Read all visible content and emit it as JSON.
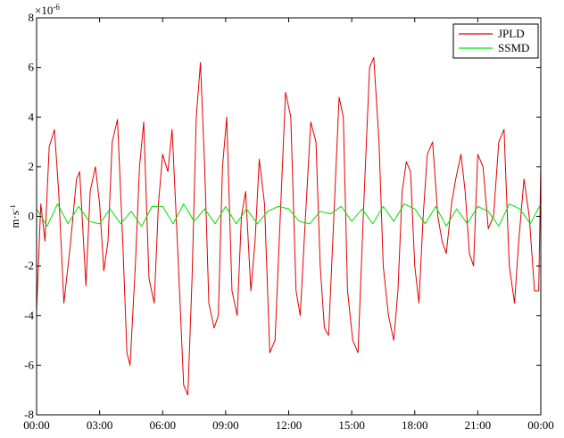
{
  "chart_data": {
    "type": "line",
    "title": "",
    "xlabel": "",
    "ylabel": "m·s",
    "ylabel_superscript": "-1",
    "y_scale_base": "×10",
    "y_scale_exponent": "-6",
    "xlim": [
      0,
      24
    ],
    "ylim": [
      -8,
      8
    ],
    "x_ticks": [
      0,
      3,
      6,
      9,
      12,
      15,
      18,
      21,
      24
    ],
    "x_tick_labels": [
      "00:00",
      "03:00",
      "06:00",
      "09:00",
      "12:00",
      "15:00",
      "18:00",
      "21:00",
      "00:00"
    ],
    "y_ticks": [
      -8,
      -6,
      -4,
      -2,
      0,
      2,
      4,
      6,
      8
    ],
    "y_tick_labels": [
      "-8",
      "-6",
      "-4",
      "-2",
      "0",
      "2",
      "4",
      "6",
      "8"
    ],
    "grid": false,
    "legend_position": "top-right",
    "series": [
      {
        "name": "JPLD",
        "color": "#e00000",
        "x": [
          0.0,
          0.2,
          0.4,
          0.6,
          0.85,
          1.05,
          1.3,
          1.6,
          1.9,
          2.05,
          2.35,
          2.55,
          2.8,
          3.0,
          3.2,
          3.4,
          3.6,
          3.85,
          4.1,
          4.3,
          4.45,
          4.7,
          4.9,
          5.1,
          5.35,
          5.6,
          5.8,
          6.0,
          6.25,
          6.45,
          6.7,
          7.0,
          7.2,
          7.4,
          7.6,
          7.8,
          8.0,
          8.2,
          8.45,
          8.65,
          8.85,
          9.05,
          9.3,
          9.55,
          9.75,
          9.95,
          10.2,
          10.4,
          10.6,
          10.85,
          11.1,
          11.35,
          11.6,
          11.85,
          12.1,
          12.35,
          12.55,
          12.8,
          13.05,
          13.3,
          13.5,
          13.7,
          13.9,
          14.15,
          14.4,
          14.6,
          14.8,
          15.05,
          15.3,
          15.55,
          15.85,
          16.05,
          16.3,
          16.5,
          16.75,
          17.0,
          17.2,
          17.4,
          17.6,
          17.8,
          18.0,
          18.2,
          18.4,
          18.6,
          18.85,
          19.1,
          19.3,
          19.5,
          19.75,
          19.95,
          20.2,
          20.4,
          20.6,
          20.8,
          21.0,
          21.25,
          21.5,
          21.75,
          22.0,
          22.25,
          22.5,
          22.75,
          22.95,
          23.2,
          23.45,
          23.7,
          23.9,
          24.0
        ],
        "y": [
          -3.8,
          0.5,
          -1.0,
          2.8,
          3.5,
          1.0,
          -3.5,
          -1.2,
          1.5,
          1.8,
          -2.8,
          1.0,
          2.0,
          0.5,
          -2.2,
          -1.0,
          3.0,
          3.9,
          -1.0,
          -5.5,
          -6.0,
          -2.0,
          2.0,
          3.8,
          -2.5,
          -3.5,
          0.5,
          2.5,
          1.8,
          3.5,
          -1.0,
          -6.8,
          -7.2,
          -2.5,
          4.0,
          6.2,
          2.0,
          -3.5,
          -4.5,
          -4.0,
          2.0,
          4.0,
          -3.0,
          -4.0,
          0.0,
          1.0,
          -3.0,
          -1.0,
          2.3,
          0.5,
          -5.5,
          -5.0,
          0.0,
          5.0,
          4.0,
          -3.0,
          -4.0,
          0.0,
          3.8,
          3.0,
          -2.0,
          -4.5,
          -4.8,
          0.0,
          4.8,
          4.0,
          -3.0,
          -5.0,
          -5.5,
          0.0,
          6.0,
          6.4,
          3.0,
          -2.0,
          -4.0,
          -5.0,
          -3.0,
          1.0,
          2.2,
          1.8,
          -2.0,
          -3.5,
          0.0,
          2.5,
          3.0,
          0.0,
          -1.0,
          -1.5,
          0.5,
          1.5,
          2.5,
          1.0,
          -1.5,
          -2.0,
          2.5,
          2.0,
          -0.5,
          0.0,
          3.0,
          3.5,
          -2.0,
          -3.5,
          -1.0,
          1.5,
          0.0,
          -3.0,
          -3.0,
          2.0
        ]
      },
      {
        "name": "SSMD",
        "color": "#00e000",
        "x": [
          0.0,
          0.5,
          1.0,
          1.5,
          2.0,
          2.5,
          3.0,
          3.5,
          4.0,
          4.5,
          5.0,
          5.5,
          6.0,
          6.5,
          7.0,
          7.5,
          8.0,
          8.5,
          9.0,
          9.5,
          10.0,
          10.5,
          11.0,
          11.5,
          12.0,
          12.5,
          13.0,
          13.5,
          14.0,
          14.5,
          15.0,
          15.5,
          16.0,
          16.5,
          17.0,
          17.5,
          18.0,
          18.5,
          19.0,
          19.5,
          20.0,
          20.5,
          21.0,
          21.5,
          22.0,
          22.5,
          23.0,
          23.5,
          24.0
        ],
        "y": [
          0.3,
          -0.4,
          0.5,
          -0.3,
          0.4,
          -0.2,
          -0.3,
          0.3,
          -0.3,
          0.2,
          -0.4,
          0.4,
          0.4,
          -0.3,
          0.5,
          -0.2,
          0.3,
          -0.3,
          0.4,
          -0.3,
          0.3,
          -0.3,
          0.2,
          0.4,
          0.3,
          -0.2,
          -0.3,
          0.2,
          0.1,
          0.4,
          -0.2,
          0.3,
          -0.3,
          0.4,
          -0.2,
          0.5,
          0.3,
          -0.3,
          0.4,
          -0.4,
          0.3,
          -0.3,
          0.4,
          0.2,
          -0.4,
          0.5,
          0.3,
          -0.3,
          0.5
        ]
      }
    ]
  }
}
